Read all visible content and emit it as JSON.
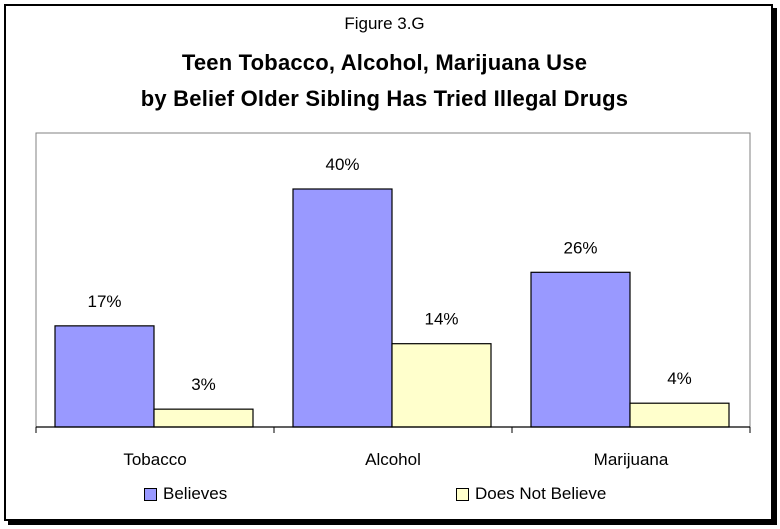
{
  "figure_label": "Figure 3.G",
  "title_line1": "Teen Tobacco, Alcohol, Marijuana Use",
  "title_line2": "by Belief Older Sibling Has Tried Illegal Drugs",
  "colors": {
    "believes": "#9999ff",
    "does_not_believe": "#ffffcc"
  },
  "chart_data": {
    "type": "bar",
    "title": "Teen Tobacco, Alcohol, Marijuana Use by Belief Older Sibling Has Tried Illegal Drugs",
    "categories": [
      "Tobacco",
      "Alcohol",
      "Marijuana"
    ],
    "series": [
      {
        "name": "Believes",
        "values": [
          17,
          40,
          26
        ],
        "labels": [
          "17%",
          "40%",
          "26%"
        ],
        "color": "#9999ff"
      },
      {
        "name": "Does Not Believe",
        "values": [
          3,
          14,
          4
        ],
        "labels": [
          "3%",
          "14%",
          "4%"
        ],
        "color": "#ffffcc"
      }
    ],
    "xlabel": "",
    "ylabel": "",
    "ylim": [
      0,
      50
    ],
    "grid": false,
    "legend": "bottom"
  },
  "legend": {
    "believes": "Believes",
    "does_not_believe": "Does Not Believe"
  }
}
